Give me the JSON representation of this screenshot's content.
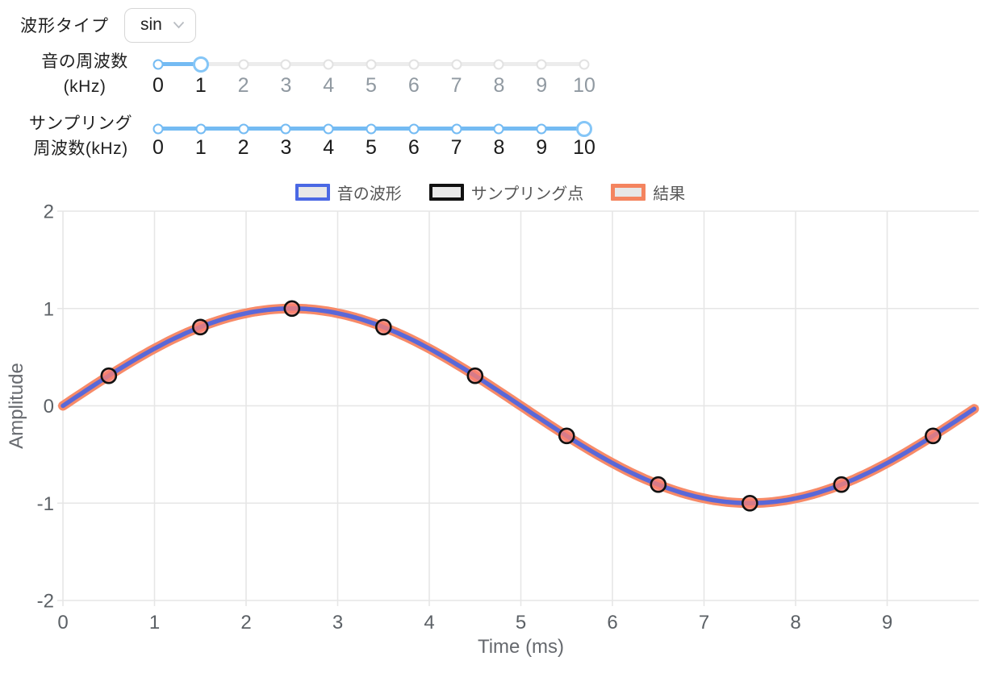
{
  "controls": {
    "waveform": {
      "label": "波形タイプ",
      "value": "sin"
    },
    "slider_colors": {
      "active_track": "#74bbf3",
      "inactive_track": "#ececec",
      "active_dot_border": "#74bbf3",
      "inactive_dot_border": "#e2e2e2",
      "handle_border": "#85c6f7",
      "active_number": "#1b1b1b",
      "inactive_number": "#9099a1"
    },
    "sliders": [
      {
        "id": "freq",
        "label_lines": [
          "音の周波数",
          "(kHz)"
        ],
        "min": 0,
        "max": 10,
        "step": 1,
        "value": 1,
        "tick_labels": [
          "0",
          "1",
          "2",
          "3",
          "4",
          "5",
          "6",
          "7",
          "8",
          "9",
          "10"
        ]
      },
      {
        "id": "sampling",
        "label_lines": [
          "サンプリング",
          "周波数(kHz)"
        ],
        "min": 0,
        "max": 10,
        "step": 1,
        "value": 10,
        "tick_labels": [
          "0",
          "1",
          "2",
          "3",
          "4",
          "5",
          "6",
          "7",
          "8",
          "9",
          "10"
        ]
      }
    ]
  },
  "legend": [
    {
      "label": "音の波形",
      "border_color": "#4a68e4",
      "fill": "#e8e8e8",
      "border_width": 4,
      "inner_w": 35,
      "inner_h": 13
    },
    {
      "label": "サンプリング点",
      "border_color": "#111111",
      "fill": "#e8e8e8",
      "border_width": 4,
      "inner_w": 35,
      "inner_h": 13
    },
    {
      "label": "結果",
      "border_color": "#f4845f",
      "fill": "#e7e7e7",
      "border_width": 5,
      "inner_w": 33,
      "inner_h": 11
    }
  ],
  "chart_data": {
    "type": "line",
    "title": "",
    "xlabel": "Time (ms)",
    "ylabel": "Amplitude",
    "xlim": [
      0,
      10
    ],
    "ylim": [
      -2,
      2
    ],
    "x_ticks": [
      0,
      1,
      2,
      3,
      4,
      5,
      6,
      7,
      8,
      9
    ],
    "y_ticks": [
      2,
      1,
      0,
      -1,
      -2
    ],
    "grid": true,
    "legend_position": "top",
    "colors": {
      "grid": "#e6e6e6",
      "tick_text": "#5c6166",
      "axis_title": "#66696e"
    },
    "series": [
      {
        "name": "結果",
        "type": "line",
        "color": "#f78a68",
        "line_width": 12,
        "wave": {
          "shape": "sin",
          "amplitude": 1,
          "period_ms": 10,
          "phase": 0
        },
        "x_range": [
          0,
          9.95
        ]
      },
      {
        "name": "音の波形",
        "type": "line",
        "color": "#5a68d8",
        "line_width": 5.5,
        "wave": {
          "shape": "sin",
          "amplitude": 1,
          "period_ms": 10,
          "phase": 0
        },
        "x_range": [
          0,
          9.95
        ]
      },
      {
        "name": "サンプリング点",
        "type": "scatter",
        "point_fill": "#fa8072",
        "point_fill_opacity": 0.78,
        "point_border": "#111111",
        "point_border_width": 2.6,
        "point_radius": 9,
        "x": [
          0.5,
          1.5,
          2.5,
          3.5,
          4.5,
          5.5,
          6.5,
          7.5,
          8.5,
          9.5
        ],
        "y": [
          0.309,
          0.809,
          1,
          0.809,
          0.309,
          -0.309,
          -0.809,
          -1,
          -0.809,
          -0.309
        ]
      }
    ]
  }
}
